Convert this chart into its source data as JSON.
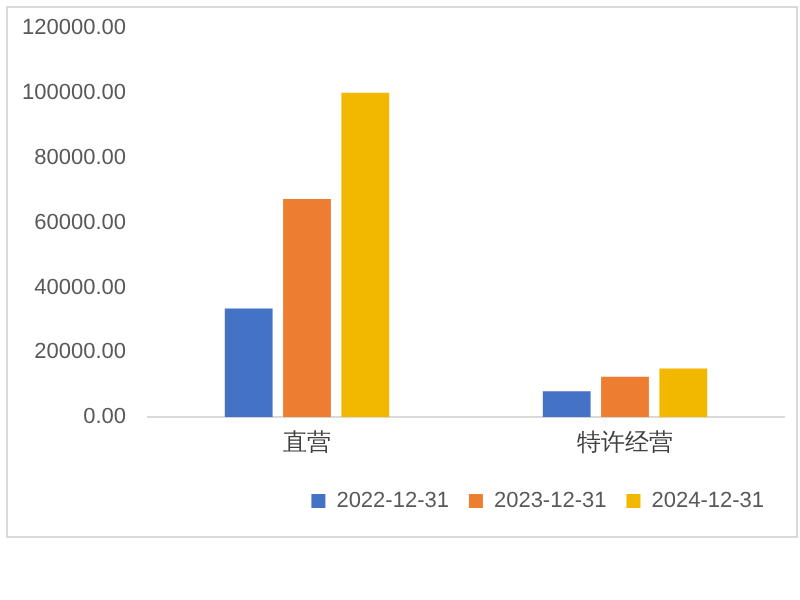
{
  "chart_data": {
    "type": "bar",
    "categories": [
      "直营",
      "特许经营"
    ],
    "series": [
      {
        "name": "2022-12-31",
        "color": "#4472c4",
        "values": [
          33500,
          8000
        ]
      },
      {
        "name": "2023-12-31",
        "color": "#ed7d31",
        "values": [
          67300,
          12500
        ]
      },
      {
        "name": "2024-12-31",
        "color": "#f2b800",
        "values": [
          100000,
          15000
        ]
      }
    ],
    "ylim": [
      0,
      120000
    ],
    "yticks": [
      {
        "value": 0,
        "label": "0.00"
      },
      {
        "value": 20000,
        "label": "20000.00"
      },
      {
        "value": 40000,
        "label": "40000.00"
      },
      {
        "value": 60000,
        "label": "60000.00"
      },
      {
        "value": 80000,
        "label": "80000.00"
      },
      {
        "value": 100000,
        "label": "100000.00"
      },
      {
        "value": 120000,
        "label": "120000.00"
      }
    ],
    "grid": false,
    "legend": "bottom right"
  }
}
